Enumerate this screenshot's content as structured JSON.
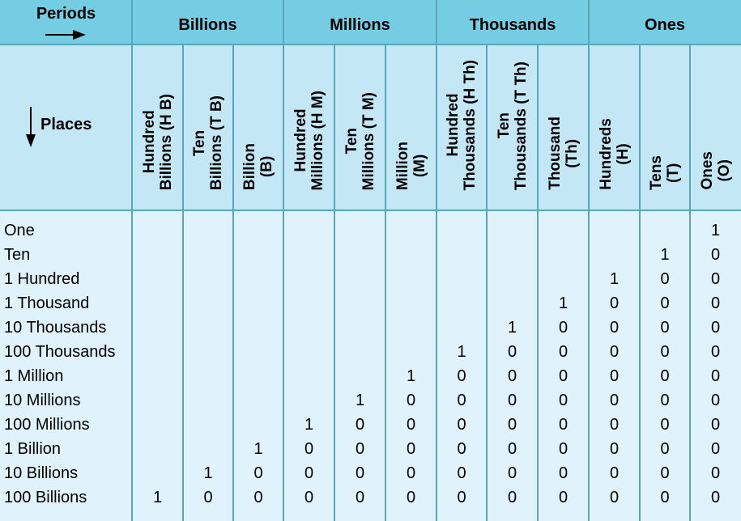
{
  "corner": {
    "periods_label": "Periods",
    "places_label": "Places"
  },
  "periods": [
    "Billions",
    "Millions",
    "Thousands",
    "Ones"
  ],
  "places": [
    [
      "Hundred",
      "Billions (H B)"
    ],
    [
      "Ten",
      "Billions (T B)"
    ],
    [
      "Billion",
      "(B)"
    ],
    [
      "Hundred",
      "Millions (H M)"
    ],
    [
      "Ten",
      "Millions (T M)"
    ],
    [
      "Million",
      "(M)"
    ],
    [
      "Hundred",
      "Thousands (H Th)"
    ],
    [
      "Ten",
      "Thousands (T Th)"
    ],
    [
      "Thousand",
      "(Th)"
    ],
    [
      "Hundreds",
      "(H)"
    ],
    [
      "Tens",
      "(T)"
    ],
    [
      "Ones",
      "(O)"
    ]
  ],
  "rows": [
    {
      "label": "One",
      "digits": [
        "",
        "",
        "",
        "",
        "",
        "",
        "",
        "",
        "",
        "",
        "",
        "1"
      ]
    },
    {
      "label": "Ten",
      "digits": [
        "",
        "",
        "",
        "",
        "",
        "",
        "",
        "",
        "",
        "",
        "1",
        "0"
      ]
    },
    {
      "label": "1 Hundred",
      "digits": [
        "",
        "",
        "",
        "",
        "",
        "",
        "",
        "",
        "",
        "1",
        "0",
        "0"
      ]
    },
    {
      "label": "1 Thousand",
      "digits": [
        "",
        "",
        "",
        "",
        "",
        "",
        "",
        "",
        "1",
        "0",
        "0",
        "0"
      ]
    },
    {
      "label": "10 Thousands",
      "digits": [
        "",
        "",
        "",
        "",
        "",
        "",
        "",
        "1",
        "0",
        "0",
        "0",
        "0"
      ]
    },
    {
      "label": "100 Thousands",
      "digits": [
        "",
        "",
        "",
        "",
        "",
        "",
        "1",
        "0",
        "0",
        "0",
        "0",
        "0"
      ]
    },
    {
      "label": "1 Million",
      "digits": [
        "",
        "",
        "",
        "",
        "",
        "1",
        "0",
        "0",
        "0",
        "0",
        "0",
        "0"
      ]
    },
    {
      "label": "10 Millions",
      "digits": [
        "",
        "",
        "",
        "",
        "1",
        "0",
        "0",
        "0",
        "0",
        "0",
        "0",
        "0"
      ]
    },
    {
      "label": "100 Millions",
      "digits": [
        "",
        "",
        "",
        "1",
        "0",
        "0",
        "0",
        "0",
        "0",
        "0",
        "0",
        "0"
      ]
    },
    {
      "label": "1 Billion",
      "digits": [
        "",
        "",
        "1",
        "0",
        "0",
        "0",
        "0",
        "0",
        "0",
        "0",
        "0",
        "0"
      ]
    },
    {
      "label": "10 Billions",
      "digits": [
        "",
        "1",
        "0",
        "0",
        "0",
        "0",
        "0",
        "0",
        "0",
        "0",
        "0",
        "0"
      ]
    },
    {
      "label": "100 Billions",
      "digits": [
        "1",
        "0",
        "0",
        "0",
        "0",
        "0",
        "0",
        "0",
        "0",
        "0",
        "0",
        "0"
      ]
    }
  ]
}
